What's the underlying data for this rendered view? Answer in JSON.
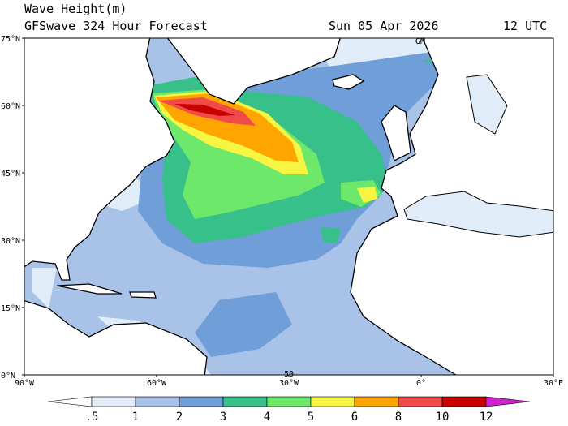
{
  "header": {
    "title": "Wave Height(m)",
    "subtitle": "GFSwave 324 Hour Forecast",
    "date": "Sun 05 Apr 2026",
    "time": "12 UTC"
  },
  "map": {
    "lat_ticks": [
      {
        "value": 75,
        "label": "75°N"
      },
      {
        "value": 60,
        "label": "60°N"
      },
      {
        "value": 45,
        "label": "45°N"
      },
      {
        "value": 30,
        "label": "30°N"
      },
      {
        "value": 15,
        "label": "15°N"
      },
      {
        "value": 0,
        "label": "0°N"
      }
    ],
    "lon_ticks": [
      {
        "value": -90,
        "label": "90°W"
      },
      {
        "value": -60,
        "label": "60°W"
      },
      {
        "value": -30,
        "label": "30°W"
      },
      {
        "value": 0,
        "label": "0°"
      },
      {
        "value": 30,
        "label": "30°E"
      }
    ],
    "annotations": [
      "GM",
      "50"
    ]
  },
  "colorbar": {
    "levels": [
      {
        "value": 0.5,
        "label": ".5"
      },
      1,
      2,
      3,
      4,
      5,
      6,
      8,
      10,
      12
    ],
    "colors": [
      "#ffffff",
      "#e0ecf8",
      "#a9c3e8",
      "#6f9ed8",
      "#38c08a",
      "#6ee86a",
      "#f5f542",
      "#ffa500",
      "#f04a4a",
      "#c80000",
      "#d020d0"
    ]
  }
}
